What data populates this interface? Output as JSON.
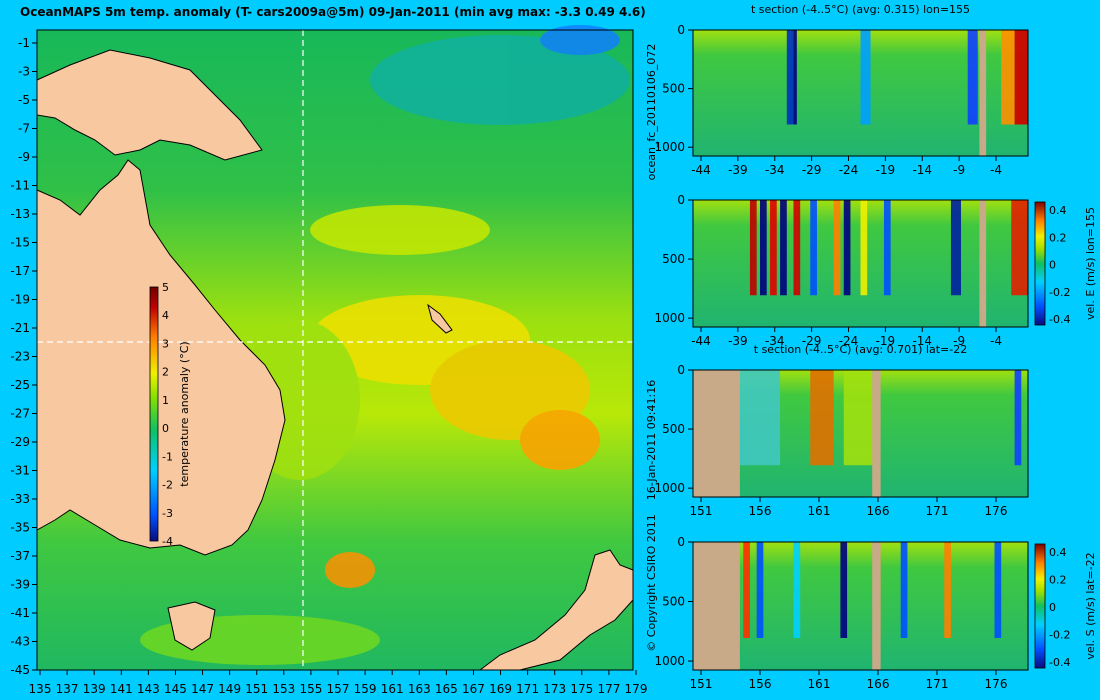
{
  "colors": {
    "background": "#00ccff",
    "land": "#f8c8a0",
    "land_section": "#c8aa88",
    "scale": [
      "#0a0a80",
      "#0050ff",
      "#00d0ff",
      "#10c060",
      "#80e000",
      "#f0f000",
      "#ff8000",
      "#c00000",
      "#700000"
    ]
  },
  "map": {
    "title": "OceanMAPS 5m temp. anomaly (T- cars2009a@5m) 09-Jan-2011 (min avg max: -3.3 0.49 4.6)",
    "x_ticks": [
      "135",
      "137",
      "139",
      "141",
      "143",
      "145",
      "147",
      "149",
      "151",
      "153",
      "155",
      "157",
      "159",
      "161",
      "163",
      "165",
      "167",
      "169",
      "171",
      "173",
      "175",
      "177",
      "179"
    ],
    "y_ticks": [
      "-1",
      "-3",
      "-5",
      "-7",
      "-9",
      "-11",
      "-13",
      "-15",
      "-17",
      "-19",
      "-21",
      "-23",
      "-25",
      "-27",
      "-29",
      "-31",
      "-33",
      "-35",
      "-37",
      "-39",
      "-41",
      "-43",
      "-45"
    ],
    "colorbar": {
      "label": "temperature anomaly (°C)",
      "ticks": [
        "5",
        "4",
        "3",
        "2",
        "1",
        "0",
        "-1",
        "-2",
        "-3",
        "-4"
      ]
    },
    "guide_lines": {
      "lon": 155,
      "lat": -22
    }
  },
  "side_labels": {
    "left": "ocean_fc_20110106_072",
    "left_bottom": "16-Jan-2011 09:41:16",
    "copyright": "© Copyright CSIRO 2011"
  },
  "sections": [
    {
      "title": "t section (-4..5°C) (avg: 0.315) lon=155",
      "x_ticks": [
        "-44",
        "-39",
        "-34",
        "-29",
        "-24",
        "-19",
        "-14",
        "-9",
        "-4"
      ],
      "y_ticks": [
        "0",
        "500",
        "1000"
      ],
      "colorbar": null
    },
    {
      "title": "",
      "x_ticks": [
        "-44",
        "-39",
        "-34",
        "-29",
        "-24",
        "-19",
        "-14",
        "-9",
        "-4"
      ],
      "y_ticks": [
        "0",
        "500",
        "1000"
      ],
      "colorbar": {
        "label": "vel. E (m/s) lon=155",
        "ticks": [
          "0.4",
          "0.2",
          "0",
          "-0.2",
          "-0.4"
        ]
      }
    },
    {
      "title": "t section (-4..5°C) (avg: 0.701) lat=-22",
      "x_ticks": [
        "151",
        "156",
        "161",
        "166",
        "171",
        "176"
      ],
      "y_ticks": [
        "0",
        "500",
        "1000"
      ],
      "colorbar": null
    },
    {
      "title": "",
      "x_ticks": [
        "151",
        "156",
        "161",
        "166",
        "171",
        "176"
      ],
      "y_ticks": [
        "0",
        "500",
        "1000"
      ],
      "colorbar": {
        "label": "vel. S (m/s) lat=-22",
        "ticks": [
          "0.4",
          "0.2",
          "0",
          "-0.2",
          "-0.4"
        ]
      }
    }
  ]
}
